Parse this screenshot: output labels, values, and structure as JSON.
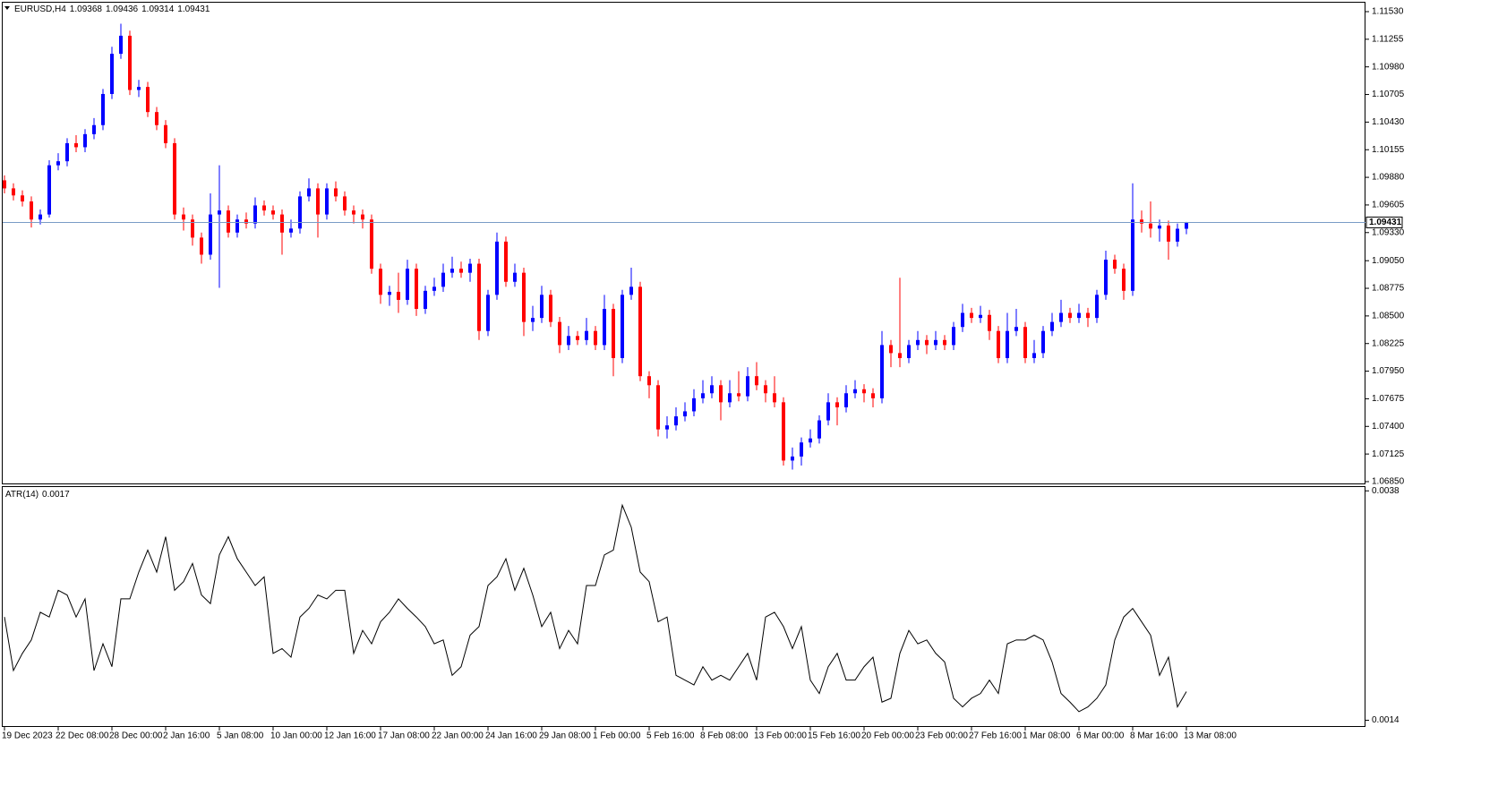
{
  "chart_data": [
    {
      "type": "candlestick",
      "title": "EURUSD,H4",
      "categories": [
        "19 Dec 2023",
        null,
        null,
        null,
        null,
        null,
        "22 Dec 08:00",
        null,
        null,
        null,
        null,
        null,
        "28 Dec 00:00",
        null,
        null,
        null,
        null,
        null,
        "2 Jan 16:00",
        null,
        null,
        null,
        null,
        null,
        "5 Jan 08:00",
        null,
        null,
        null,
        null,
        null,
        "10 Jan 00:00",
        null,
        null,
        null,
        null,
        null,
        "12 Jan 16:00",
        null,
        null,
        null,
        null,
        null,
        "17 Jan 08:00",
        null,
        null,
        null,
        null,
        null,
        "22 Jan 00:00",
        null,
        null,
        null,
        null,
        null,
        "24 Jan 16:00",
        null,
        null,
        null,
        null,
        null,
        "29 Jan 08:00",
        null,
        null,
        null,
        null,
        null,
        "1 Feb 00:00",
        null,
        null,
        null,
        null,
        null,
        "5 Feb 16:00",
        null,
        null,
        null,
        null,
        null,
        "8 Feb 08:00",
        null,
        null,
        null,
        null,
        null,
        "13 Feb 00:00",
        null,
        null,
        null,
        null,
        null,
        "15 Feb 16:00",
        null,
        null,
        null,
        null,
        null,
        "20 Feb 00:00",
        null,
        null,
        null,
        null,
        null,
        "23 Feb 00:00",
        null,
        null,
        null,
        null,
        null,
        "27 Feb 16:00",
        null,
        null,
        null,
        null,
        null,
        "1 Mar 08:00",
        null,
        null,
        null,
        null,
        null,
        "6 Mar 00:00",
        null,
        null,
        null,
        null,
        null,
        "8 Mar 16:00",
        null,
        null,
        null,
        null,
        null,
        "13 Mar 08:00"
      ],
      "open": [
        1.0985,
        1.0977,
        1.097,
        1.0964,
        1.0946,
        1.0951,
        1.1,
        1.1004,
        1.1022,
        1.1018,
        1.1031,
        1.104,
        1.1071,
        1.1111,
        1.1129,
        1.1075,
        1.1078,
        1.1053,
        1.104,
        1.1022,
        1.0951,
        1.0946,
        1.0928,
        1.0911,
        1.0951,
        1.0955,
        1.0933,
        1.0946,
        1.0942,
        1.096,
        1.0955,
        1.0951,
        1.0933,
        1.0937,
        1.0969,
        1.0977,
        1.0951,
        1.0977,
        1.0969,
        1.0955,
        1.0951,
        1.0946,
        1.0897,
        1.0871,
        1.0874,
        1.0866,
        1.0897,
        1.0857,
        1.0875,
        1.0879,
        1.0893,
        1.0897,
        1.0893,
        1.0902,
        1.0835,
        1.0871,
        1.0924,
        1.0884,
        1.0893,
        1.0844,
        1.0848,
        1.0871,
        1.0844,
        1.0821,
        1.083,
        1.0826,
        1.0835,
        1.0821,
        1.0857,
        1.0808,
        1.0871,
        1.0879,
        1.079,
        1.0781,
        1.0737,
        1.0741,
        1.075,
        1.0755,
        1.0768,
        1.0773,
        1.0781,
        1.0764,
        1.0773,
        1.077,
        1.079,
        1.0781,
        1.0773,
        1.0764,
        1.0706,
        1.071,
        1.0724,
        1.0728,
        1.0746,
        1.0764,
        1.0759,
        1.0773,
        1.0777,
        1.0773,
        1.0768,
        1.0821,
        1.0813,
        1.0808,
        1.0821,
        1.0826,
        1.0821,
        1.0826,
        1.0821,
        1.0839,
        1.0853,
        1.0848,
        1.0851,
        1.0835,
        1.0808,
        1.0835,
        1.0839,
        1.0808,
        1.0813,
        1.0835,
        1.0844,
        1.0853,
        1.0848,
        1.0853,
        1.0848,
        1.0871,
        1.0906,
        1.0897,
        1.0875,
        1.0946,
        1.0942,
        1.0937,
        1.094,
        1.0924,
        1.09368
      ],
      "high": [
        1.099,
        1.0982,
        1.0975,
        1.0969,
        1.0956,
        1.1005,
        1.1012,
        1.1027,
        1.103,
        1.1036,
        1.1047,
        1.1076,
        1.1118,
        1.1141,
        1.1134,
        1.1085,
        1.1083,
        1.1058,
        1.1045,
        1.1027,
        1.0958,
        1.0951,
        1.0933,
        1.0972,
        1.1,
        1.096,
        1.0951,
        1.0953,
        1.0968,
        1.0965,
        1.096,
        1.0956,
        1.0946,
        1.0974,
        1.0987,
        1.0982,
        1.0982,
        1.0984,
        1.0974,
        1.096,
        1.0956,
        1.0951,
        1.0902,
        1.088,
        1.0893,
        1.0906,
        1.0902,
        1.088,
        1.0888,
        1.0902,
        1.0909,
        1.0904,
        1.0907,
        1.0907,
        1.0876,
        1.0933,
        1.0929,
        1.0902,
        1.0898,
        1.086,
        1.088,
        1.0876,
        1.0849,
        1.084,
        1.0835,
        1.0848,
        1.084,
        1.0871,
        1.0862,
        1.0876,
        1.0898,
        1.0884,
        1.0795,
        1.0786,
        1.075,
        1.0759,
        1.0764,
        1.0777,
        1.0786,
        1.079,
        1.0786,
        1.0786,
        1.0795,
        1.0799,
        1.0804,
        1.0786,
        1.079,
        1.0769,
        1.0719,
        1.0729,
        1.0737,
        1.0751,
        1.0773,
        1.0769,
        1.0781,
        1.0786,
        1.0782,
        1.0778,
        1.0835,
        1.0826,
        1.0888,
        1.0826,
        1.0835,
        1.0831,
        1.0835,
        1.0831,
        1.0844,
        1.0862,
        1.0858,
        1.086,
        1.0856,
        1.084,
        1.0853,
        1.0857,
        1.0844,
        1.0826,
        1.084,
        1.0853,
        1.0866,
        1.0858,
        1.0862,
        1.0858,
        1.0876,
        1.0915,
        1.0911,
        1.0902,
        1.0982,
        1.0955,
        1.0964,
        1.0946,
        1.0945,
        1.0942,
        1.09436
      ],
      "low": [
        1.0972,
        1.0965,
        1.0959,
        1.0938,
        1.0941,
        1.0948,
        1.0995,
        1.0999,
        1.1013,
        1.1013,
        1.1026,
        1.1035,
        1.1066,
        1.1106,
        1.107,
        1.1068,
        1.1048,
        1.1035,
        1.1017,
        1.0946,
        1.0935,
        1.092,
        1.0902,
        1.0906,
        1.0878,
        1.0928,
        1.0928,
        1.0937,
        1.0937,
        1.095,
        1.0946,
        1.0911,
        1.0928,
        1.0932,
        1.0964,
        1.0928,
        1.0946,
        1.0964,
        1.095,
        1.0942,
        1.0937,
        1.0892,
        1.0862,
        1.086,
        1.0853,
        1.0861,
        1.085,
        1.0852,
        1.087,
        1.0874,
        1.0888,
        1.0888,
        1.0884,
        1.0826,
        1.083,
        1.0866,
        1.0879,
        1.0879,
        1.083,
        1.0835,
        1.0843,
        1.0839,
        1.0813,
        1.0816,
        1.0821,
        1.0821,
        1.0816,
        1.0816,
        1.079,
        1.0803,
        1.0866,
        1.0785,
        1.0768,
        1.073,
        1.0728,
        1.0736,
        1.0745,
        1.075,
        1.0763,
        1.0768,
        1.0746,
        1.0759,
        1.0765,
        1.0765,
        1.0776,
        1.0764,
        1.0759,
        1.0701,
        1.0697,
        1.0701,
        1.0719,
        1.0723,
        1.0741,
        1.0741,
        1.0754,
        1.0768,
        1.0764,
        1.0759,
        1.0763,
        1.0799,
        1.0799,
        1.0803,
        1.0816,
        1.0812,
        1.0816,
        1.0816,
        1.0816,
        1.0834,
        1.0843,
        1.0843,
        1.0826,
        1.0803,
        1.0803,
        1.083,
        1.0803,
        1.0803,
        1.0808,
        1.083,
        1.0839,
        1.0843,
        1.0843,
        1.0839,
        1.0843,
        1.0866,
        1.0892,
        1.0866,
        1.087,
        1.0933,
        1.0928,
        1.0924,
        1.0906,
        1.0919,
        1.09314
      ],
      "close": [
        1.0977,
        1.097,
        1.0964,
        1.0946,
        1.0951,
        1.1,
        1.1004,
        1.1022,
        1.1018,
        1.1031,
        1.104,
        1.1071,
        1.1111,
        1.1129,
        1.1075,
        1.1078,
        1.1053,
        1.104,
        1.1022,
        1.0951,
        1.0946,
        1.0928,
        1.0911,
        1.0951,
        1.0955,
        1.0933,
        1.0946,
        1.0942,
        1.096,
        1.0955,
        1.0951,
        1.0933,
        1.0937,
        1.0969,
        1.0977,
        1.0951,
        1.0977,
        1.0969,
        1.0955,
        1.0951,
        1.0946,
        1.0897,
        1.0871,
        1.0874,
        1.0866,
        1.0897,
        1.0857,
        1.0875,
        1.0879,
        1.0893,
        1.0897,
        1.0893,
        1.0902,
        1.0835,
        1.0871,
        1.0924,
        1.0884,
        1.0893,
        1.0844,
        1.0848,
        1.0871,
        1.0844,
        1.0821,
        1.083,
        1.0826,
        1.0835,
        1.0821,
        1.0857,
        1.0808,
        1.0871,
        1.0879,
        1.079,
        1.0781,
        1.0737,
        1.0741,
        1.075,
        1.0755,
        1.0768,
        1.0773,
        1.0781,
        1.0764,
        1.0773,
        1.077,
        1.079,
        1.0781,
        1.0773,
        1.0764,
        1.0706,
        1.071,
        1.0724,
        1.0728,
        1.0746,
        1.0764,
        1.0759,
        1.0773,
        1.0777,
        1.0773,
        1.0768,
        1.0821,
        1.0813,
        1.0808,
        1.0821,
        1.0826,
        1.0821,
        1.0826,
        1.0821,
        1.0839,
        1.0853,
        1.0848,
        1.0851,
        1.0835,
        1.0808,
        1.0835,
        1.0839,
        1.0808,
        1.0813,
        1.0835,
        1.0844,
        1.0853,
        1.0848,
        1.0853,
        1.0848,
        1.0871,
        1.0906,
        1.0897,
        1.0875,
        1.0946,
        1.0942,
        1.0937,
        1.094,
        1.0924,
        1.09368,
        1.09431
      ],
      "up_color": "#0000ff",
      "down_color": "#ff0000",
      "price_line_color": "#7a9cc6",
      "ylim": [
        1.06823,
        1.11628
      ],
      "yticks": [
        {
          "value": 1.1153,
          "label": "1.11530"
        },
        {
          "value": 1.11255,
          "label": "1.11255"
        },
        {
          "value": 1.1098,
          "label": "1.10980"
        },
        {
          "value": 1.10705,
          "label": "1.10705"
        },
        {
          "value": 1.1043,
          "label": "1.10430"
        },
        {
          "value": 1.10155,
          "label": "1.10155"
        },
        {
          "value": 1.0988,
          "label": "1.09880"
        },
        {
          "value": 1.09605,
          "label": "1.09605"
        },
        {
          "value": 1.0933,
          "label": "1.09330"
        },
        {
          "value": 1.0905,
          "label": "1.09050"
        },
        {
          "value": 1.08775,
          "label": "1.08775"
        },
        {
          "value": 1.085,
          "label": "1.08500"
        },
        {
          "value": 1.08225,
          "label": "1.08225"
        },
        {
          "value": 1.0795,
          "label": "1.07950"
        },
        {
          "value": 1.07675,
          "label": "1.07675"
        },
        {
          "value": 1.074,
          "label": "1.07400"
        },
        {
          "value": 1.07125,
          "label": "1.07125"
        },
        {
          "value": 1.0685,
          "label": "1.06850"
        }
      ]
    },
    {
      "type": "line",
      "title": "ATR(14)",
      "color": "#000000",
      "values": [
        0.00248,
        0.00192,
        0.0021,
        0.00224,
        0.00253,
        0.00248,
        0.00276,
        0.00271,
        0.00248,
        0.00267,
        0.00192,
        0.0022,
        0.00196,
        0.00267,
        0.00267,
        0.00295,
        0.00318,
        0.00295,
        0.00332,
        0.00276,
        0.00285,
        0.00304,
        0.00271,
        0.00262,
        0.00313,
        0.00332,
        0.00309,
        0.00295,
        0.00281,
        0.0029,
        0.0021,
        0.00215,
        0.00206,
        0.00248,
        0.00257,
        0.00271,
        0.00267,
        0.00276,
        0.00276,
        0.0021,
        0.00234,
        0.0022,
        0.00243,
        0.00253,
        0.00267,
        0.00257,
        0.00248,
        0.00238,
        0.0022,
        0.00224,
        0.00187,
        0.00196,
        0.00229,
        0.00238,
        0.00281,
        0.0029,
        0.00309,
        0.00276,
        0.00299,
        0.00271,
        0.00238,
        0.00253,
        0.00215,
        0.00234,
        0.0022,
        0.00281,
        0.00281,
        0.00313,
        0.00318,
        0.00365,
        0.00342,
        0.00295,
        0.00285,
        0.00243,
        0.00248,
        0.00187,
        0.00182,
        0.00177,
        0.00196,
        0.00182,
        0.00187,
        0.00182,
        0.00196,
        0.0021,
        0.00182,
        0.00248,
        0.00253,
        0.00238,
        0.00215,
        0.00238,
        0.00182,
        0.00168,
        0.00196,
        0.0021,
        0.00182,
        0.00182,
        0.00196,
        0.00206,
        0.00159,
        0.00163,
        0.0021,
        0.00234,
        0.0022,
        0.00224,
        0.0021,
        0.00201,
        0.00163,
        0.00154,
        0.00163,
        0.00168,
        0.00182,
        0.00168,
        0.0022,
        0.00224,
        0.00224,
        0.00229,
        0.00224,
        0.00201,
        0.00168,
        0.00159,
        0.00149,
        0.00154,
        0.00163,
        0.00177,
        0.00224,
        0.00248,
        0.00257,
        0.00243,
        0.00229,
        0.00187,
        0.00206,
        0.00154,
        0.0017
      ],
      "ylim": [
        0.00133,
        0.00384
      ],
      "yticks": [
        0.0038,
        0.0014
      ]
    }
  ]
}
